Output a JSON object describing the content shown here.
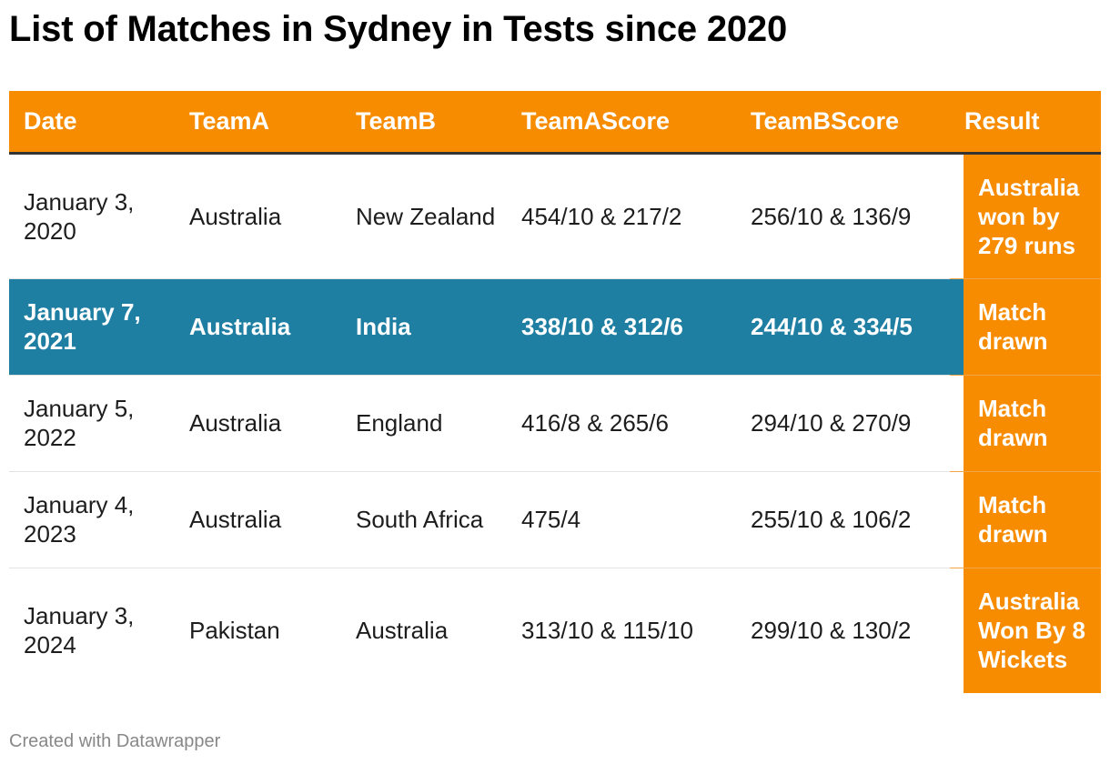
{
  "title": "List of Matches in Sydney in Tests since 2020",
  "colors": {
    "header_bg": "#f78c00",
    "result_bg": "#f78c00",
    "highlight_row_bg": "#1f7fa3",
    "header_text": "#ffffff"
  },
  "table": {
    "headers": [
      "Date",
      "TeamA",
      "TeamB",
      "TeamAScore",
      "TeamBScore",
      "Result"
    ],
    "highlighted_row": 1,
    "rows": [
      [
        "January 3, 2020",
        "Australia",
        "New Zealand",
        "454/10 & 217/2",
        "256/10 & 136/9",
        "Australia won by 279 runs"
      ],
      [
        "January 7, 2021",
        "Australia",
        "India",
        "338/10 & 312/6",
        "244/10 & 334/5",
        "Match drawn"
      ],
      [
        "January 5, 2022",
        "Australia",
        "England",
        "416/8 & 265/6",
        "294/10 & 270/9",
        "Match drawn"
      ],
      [
        "January 4, 2023",
        "Australia",
        "South Africa",
        "475/4",
        "255/10 & 106/2",
        "Match drawn"
      ],
      [
        "January 3, 2024",
        "Pakistan",
        "Australia",
        "313/10 & 115/10",
        "299/10 & 130/2",
        "Australia Won By 8 Wickets"
      ]
    ]
  },
  "footer": "Created with Datawrapper"
}
